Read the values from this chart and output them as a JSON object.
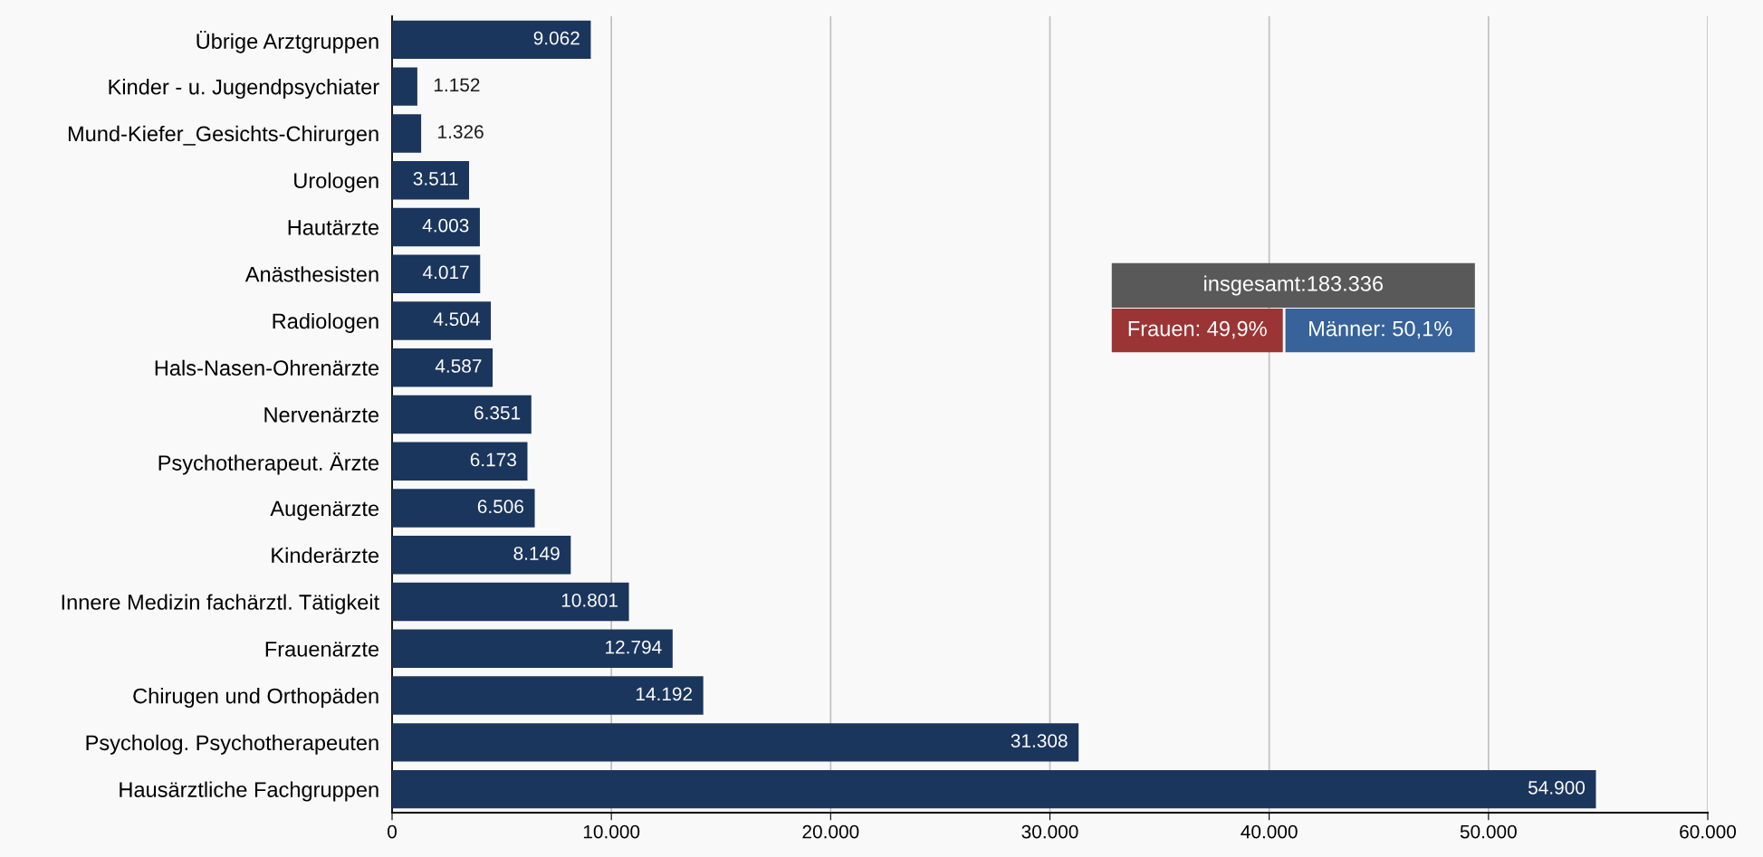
{
  "chart_data": {
    "type": "bar",
    "orientation": "horizontal",
    "categories": [
      "Übrige Arztgruppen",
      "Kinder - u. Jugendpsychiater",
      "Mund-Kiefer_Gesichts-Chirurgen",
      "Urologen",
      "Hautärzte",
      "Anästhesisten",
      "Radiologen",
      "Hals-Nasen-Ohrenärzte",
      "Nervenärzte",
      "Psychotherapeut. Ärzte",
      "Augenärzte",
      "Kinderärzte",
      "Innere Medizin fachärztl. Tätigkeit",
      "Frauenärzte",
      "Chirugen und Orthopäden",
      "Psycholog. Psychotherapeuten",
      "Hausärztliche Fachgruppen"
    ],
    "values": [
      9062,
      1152,
      1326,
      3511,
      4003,
      4017,
      4504,
      4587,
      6351,
      6173,
      6506,
      8149,
      10801,
      12794,
      14192,
      31308,
      54900
    ],
    "value_labels": [
      "9.062",
      "1.152",
      "1.326",
      "3.511",
      "4.003",
      "4.017",
      "4.504",
      "4.587",
      "6.351",
      "6.173",
      "6.506",
      "8.149",
      "10.801",
      "12.794",
      "14.192",
      "31.308",
      "54.900"
    ],
    "color": "#1b365d",
    "xlim": [
      0,
      60000
    ],
    "xticks": [
      0,
      {
        "value": 10000,
        "label": "10.000"
      },
      {
        "value": 20000,
        "label": "20.000"
      },
      {
        "value": 30000,
        "label": "30.000"
      },
      {
        "value": 40000,
        "label": "40.000"
      },
      {
        "value": 50000,
        "label": "50.000"
      },
      {
        "value": 60000,
        "label": "60.000"
      }
    ],
    "grid": "x",
    "annotations": [
      "insgesamt:183.336",
      "Frauen: 49,9%",
      "Männer: 50,1%"
    ]
  }
}
